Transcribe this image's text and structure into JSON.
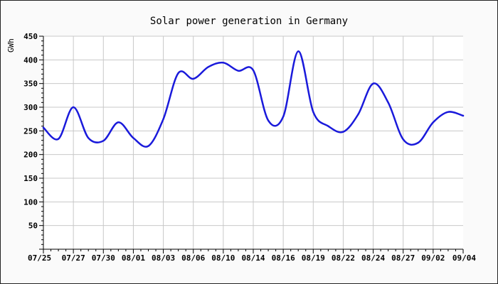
{
  "chart_data": {
    "type": "line",
    "title": "Solar power generation in Germany",
    "xlabel": "",
    "ylabel": "GWh",
    "ylim": [
      0,
      450
    ],
    "yticks": [
      50,
      100,
      150,
      200,
      250,
      300,
      350,
      400,
      450
    ],
    "grid": true,
    "line_color": "#1a1adb",
    "x_tick_labels": [
      "07/25",
      "07/27",
      "07/30",
      "08/01",
      "08/03",
      "08/06",
      "08/10",
      "08/14",
      "08/16",
      "08/19",
      "08/22",
      "08/24",
      "08/27",
      "09/02",
      "09/04"
    ],
    "series": [
      {
        "x": [
          0,
          0.5,
          1.0,
          1.5,
          2.0,
          2.5,
          3.0,
          3.5,
          4.0,
          4.5,
          5.0,
          5.5,
          6.0,
          6.5,
          7.0,
          7.5,
          8.0,
          8.5,
          9.0,
          9.5,
          10.0,
          10.5,
          11.0,
          11.5,
          12.0,
          12.5,
          13.0,
          13.5,
          14.0
        ],
        "values": [
          257,
          233,
          300,
          235,
          229,
          268,
          235,
          218,
          275,
          372,
          360,
          385,
          394,
          377,
          378,
          272,
          280,
          418,
          290,
          260,
          248,
          285,
          350,
          310,
          232,
          225,
          268,
          290,
          282
        ]
      }
    ]
  }
}
